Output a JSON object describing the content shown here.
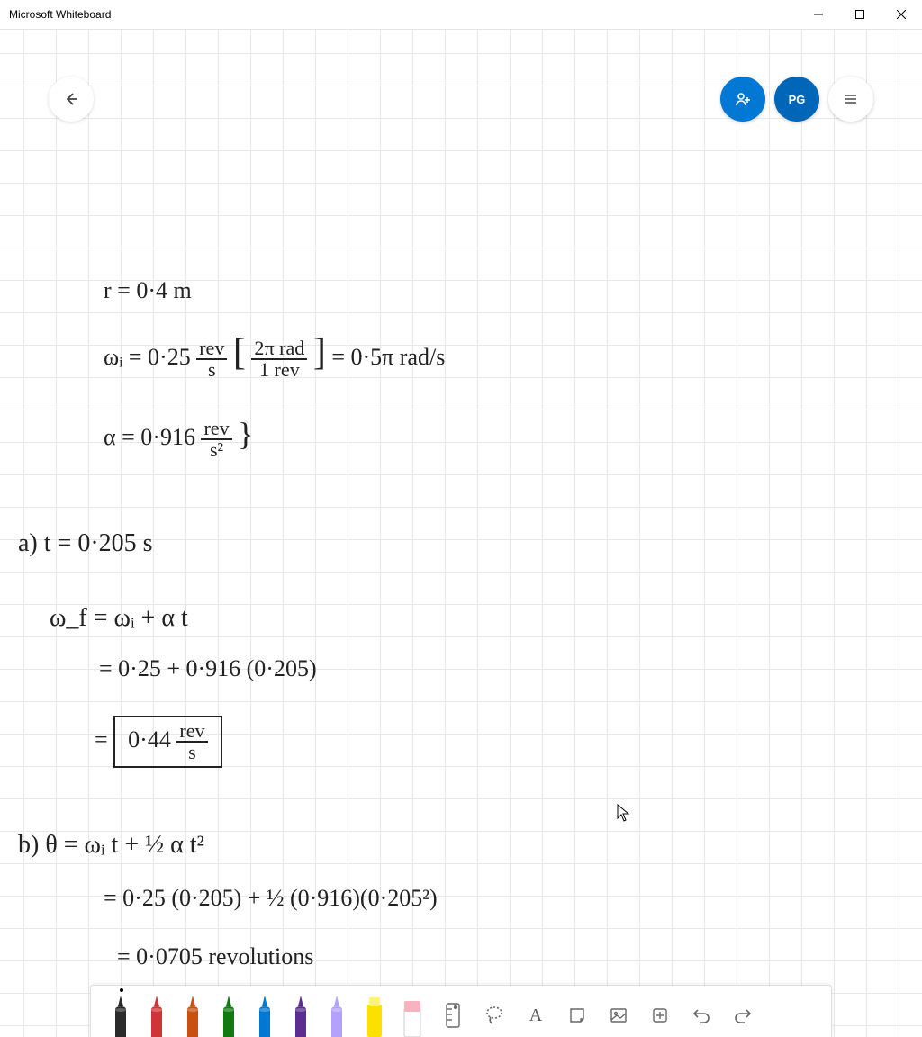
{
  "window": {
    "title": "Microsoft Whiteboard"
  },
  "header": {
    "avatar_initials": "PG"
  },
  "handwriting": {
    "l1": "r = 0·4 m",
    "l2_a": "ωᵢ = 0·25",
    "l2_rev": "rev",
    "l2_s": "s",
    "l2_b1": "[",
    "l2_2pi": "2π rad",
    "l2_1rev": "1 rev",
    "l2_b2": "]",
    "l2_eq": " = 0·5π  rad/s",
    "l3_a": "α = 0·916",
    "l3_rev": "rev",
    "l3_s2": "s²",
    "l3_brace": "}",
    "l4": "a)   t = 0·205 s",
    "l5": "ω_f = ωᵢ + α t",
    "l6": "= 0·25 + 0·916 (0·205)",
    "l7_eq": "=",
    "l7_val": "0·44",
    "l7_rev": "rev",
    "l7_s": "s",
    "l8": "b)  θ = ωᵢ t + ½ α t²",
    "l9": "= 0·25 (0·205) + ½ (0·916)(0·205²)",
    "l10": "= 0·0705  revolutions"
  },
  "pens": [
    {
      "body": "#2b2b2b",
      "tip": "#2b2b2b",
      "active": true
    },
    {
      "body": "#d13438",
      "tip": "#d13438",
      "active": false
    },
    {
      "body": "#ca5010",
      "tip": "#ca5010",
      "active": false
    },
    {
      "body": "#107c10",
      "tip": "#107c10",
      "active": false
    },
    {
      "body": "#0078d4",
      "tip": "#0078d4",
      "active": false
    },
    {
      "body": "#5c2e91",
      "tip": "#5c2e91",
      "active": false
    },
    {
      "body": "#b4a0ff",
      "tip": "#b4a0ff",
      "active": false
    }
  ],
  "highlighter": {
    "body": "#fce100"
  },
  "eraser": {
    "body": "#f8b2c0"
  },
  "tools": {
    "text_label": "A"
  }
}
